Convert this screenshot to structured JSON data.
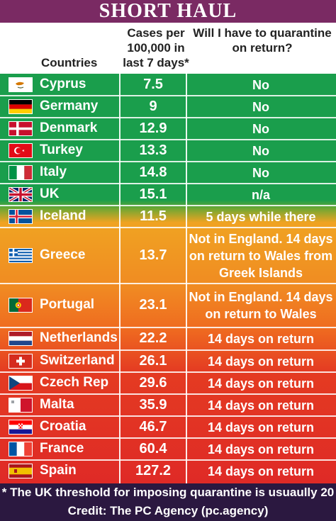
{
  "title": "SHORT HAUL",
  "headers": {
    "country": "Countries",
    "cases": "Cases per 100,000 in last 7 days*",
    "quarantine": "Will I have to quarantine on return?"
  },
  "rows": [
    {
      "country": "Cyprus",
      "flag": "cyprus-flag",
      "cases": "7.5",
      "quarantine": "No"
    },
    {
      "country": "Germany",
      "flag": "germany-flag",
      "cases": "9",
      "quarantine": "No"
    },
    {
      "country": "Denmark",
      "flag": "denmark-flag",
      "cases": "12.9",
      "quarantine": "No"
    },
    {
      "country": "Turkey",
      "flag": "turkey-flag",
      "cases": "13.3",
      "quarantine": "No"
    },
    {
      "country": "Italy",
      "flag": "italy-flag",
      "cases": "14.8",
      "quarantine": "No"
    },
    {
      "country": "UK",
      "flag": "uk-flag",
      "cases": "15.1",
      "quarantine": "n/a"
    },
    {
      "country": "Iceland",
      "flag": "iceland-flag",
      "cases": "11.5",
      "quarantine": "5 days while there"
    },
    {
      "country": "Greece",
      "flag": "greece-flag",
      "cases": "13.7",
      "quarantine": "Not in England. 14 days on return to Wales from Greek Islands"
    },
    {
      "country": "Portugal",
      "flag": "portugal-flag",
      "cases": "23.1",
      "quarantine": "Not in England. 14 days on return to Wales"
    },
    {
      "country": "Netherlands",
      "flag": "netherlands-flag",
      "cases": "22.2",
      "quarantine": "14 days on return"
    },
    {
      "country": "Switzerland",
      "flag": "switzerland-flag",
      "cases": "26.1",
      "quarantine": "14 days on return"
    },
    {
      "country": "Czech Rep",
      "flag": "czech-flag",
      "cases": "29.6",
      "quarantine": "14 days on return"
    },
    {
      "country": "Malta",
      "flag": "malta-flag",
      "cases": "35.9",
      "quarantine": "14 days on return"
    },
    {
      "country": "Croatia",
      "flag": "croatia-flag",
      "cases": "46.7",
      "quarantine": "14 days on return"
    },
    {
      "country": "France",
      "flag": "france-flag",
      "cases": "60.4",
      "quarantine": "14 days on return"
    },
    {
      "country": "Spain",
      "flag": "spain-flag",
      "cases": "127.2",
      "quarantine": "14 days on return"
    }
  ],
  "footnote": "* The UK threshold for imposing quarantine is usuaully 20",
  "credit": "Credit: The PC Agency (pc.agency)"
}
